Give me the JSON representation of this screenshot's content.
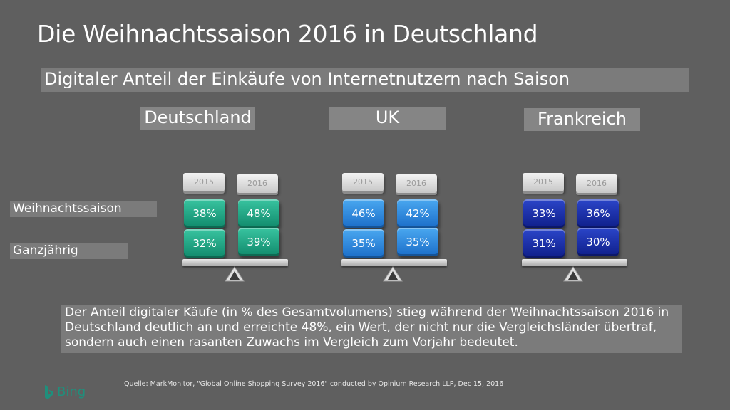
{
  "title": "Die Weihnachtssaison 2016 in Deutschland",
  "subtitle": "Digitaler Anteil der Einkäufe von Internetnutzern nach Saison",
  "row_labels": {
    "season": "Weihnachtssaison",
    "year_round": "Ganzjährig"
  },
  "countries": [
    {
      "name": "Deutschland",
      "color": "#1a9e7d",
      "years": [
        "2015",
        "2016"
      ],
      "season": [
        "38%",
        "48%"
      ],
      "year_round": [
        "32%",
        "39%"
      ]
    },
    {
      "name": "UK",
      "color": "#2f8ae0",
      "years": [
        "2015",
        "2016"
      ],
      "season": [
        "46%",
        "42%"
      ],
      "year_round": [
        "35%",
        "35%"
      ]
    },
    {
      "name": "Frankreich",
      "color": "#1a2fa8",
      "years": [
        "2015",
        "2016"
      ],
      "season": [
        "33%",
        "36%"
      ],
      "year_round": [
        "31%",
        "30%"
      ]
    }
  ],
  "description": "Der Anteil digitaler Käufe (in % des Gesamtvolumens) stieg während der Weihnachtssaison 2016 in Deutschland deutlich an und erreichte 48%, ein Wert, der nicht nur  die Vergleichsländer übertraf, sondern auch einen rasanten Zuwachs im Vergleich zum Vorjahr bedeutet.",
  "source": "Quelle: MarkMonitor, \"Global Online Shopping Survey 2016\" conducted by Opinium Research LLP, Dec 15, 2016",
  "brand": {
    "name": "Bing",
    "icon": "bing-logo-icon",
    "color": "#1f8f7c"
  }
}
